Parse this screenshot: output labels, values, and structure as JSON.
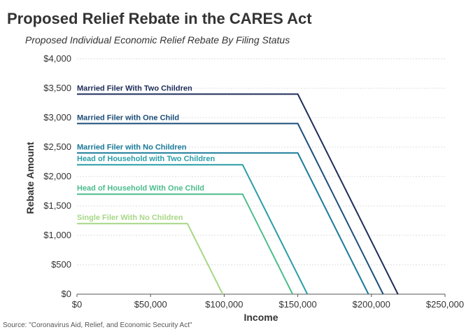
{
  "chart_data": {
    "type": "line",
    "title": "Proposed Relief Rebate in the CARES Act",
    "subtitle": "Proposed Individual Economic Relief Rebate By Filing Status",
    "xlabel": "Income",
    "ylabel": "Rebate Amount",
    "xlim": [
      0,
      250000
    ],
    "ylim": [
      0,
      4000
    ],
    "x_ticks": [
      "$0",
      "$50,000",
      "$100,000",
      "$150,000",
      "$200,000",
      "$250,000"
    ],
    "y_ticks": [
      "$0",
      "$500",
      "$1,000",
      "$1,500",
      "$2,000",
      "$2,500",
      "$3,000",
      "$3,500",
      "$4,000"
    ],
    "grid": "horizontal",
    "source": "Source: \"Coronavirus Aid, Relief, and Economic Security Act\"",
    "series": [
      {
        "name": "Married Filer With Two Children",
        "color": "#1f2d5a",
        "points": [
          [
            0,
            3400
          ],
          [
            150000,
            3400
          ],
          [
            218000,
            0
          ]
        ]
      },
      {
        "name": "Married Filer with One Child",
        "color": "#1d4e78",
        "points": [
          [
            0,
            2900
          ],
          [
            150000,
            2900
          ],
          [
            208000,
            0
          ]
        ]
      },
      {
        "name": "Married Filer with No Children",
        "color": "#1a7a9a",
        "points": [
          [
            0,
            2400
          ],
          [
            150000,
            2400
          ],
          [
            198000,
            0
          ]
        ]
      },
      {
        "name": "Head of Household with Two Children",
        "color": "#2a9ea8",
        "points": [
          [
            0,
            2200
          ],
          [
            112500,
            2200
          ],
          [
            156500,
            0
          ]
        ]
      },
      {
        "name": "Head of Household With One Child",
        "color": "#4cbc8c",
        "points": [
          [
            0,
            1700
          ],
          [
            112500,
            1700
          ],
          [
            146500,
            0
          ]
        ]
      },
      {
        "name": "Single Filer With No Children",
        "color": "#a6d785",
        "points": [
          [
            0,
            1200
          ],
          [
            75000,
            1200
          ],
          [
            99000,
            0
          ]
        ]
      }
    ]
  }
}
